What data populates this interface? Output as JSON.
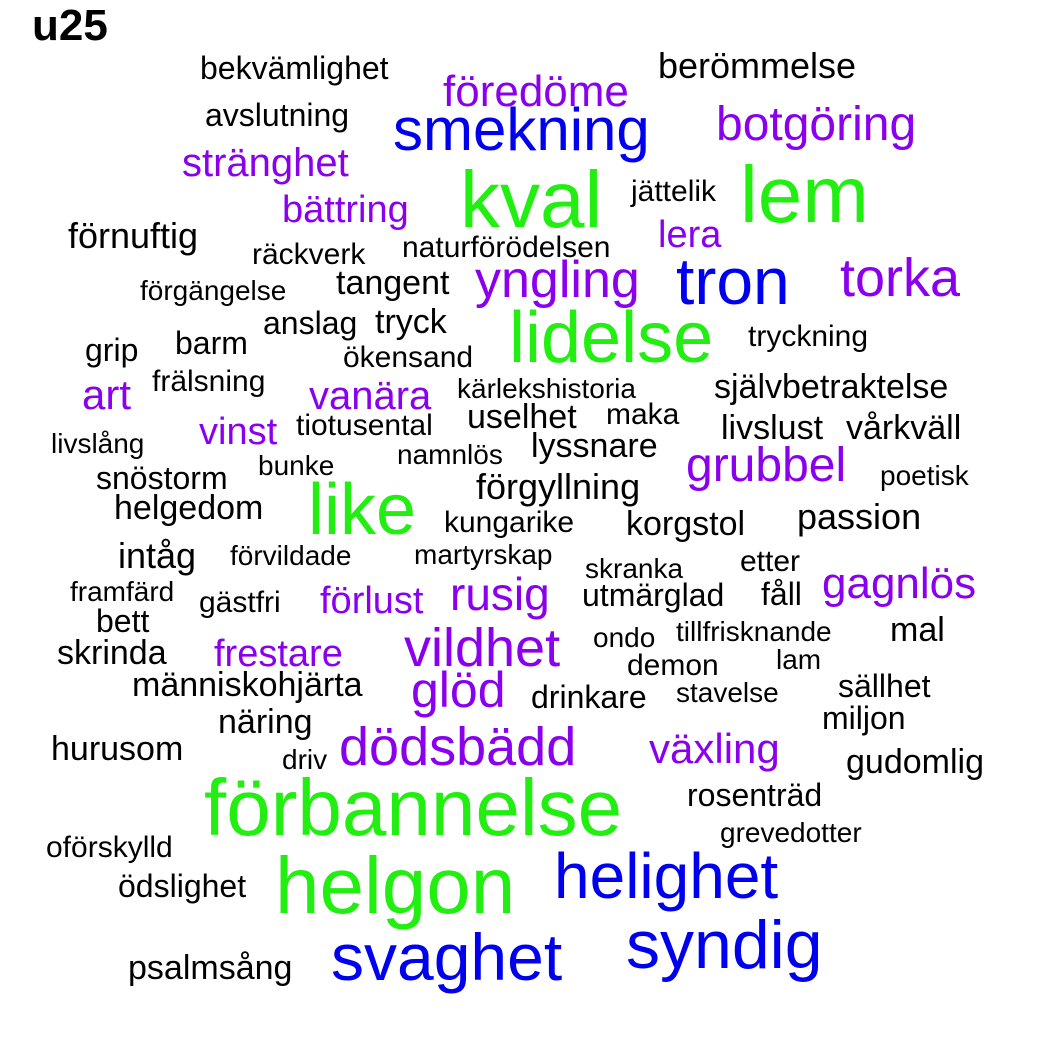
{
  "title": "u25",
  "colors": {
    "black": "#000000",
    "purple": "#8a00ee",
    "blue": "#0000ee",
    "green": "#22ee11"
  },
  "words": [
    {
      "text": "bekvämlighet",
      "color": "black"
    },
    {
      "text": "berömmelse",
      "color": "black"
    },
    {
      "text": "föredöme",
      "color": "purple"
    },
    {
      "text": "avslutning",
      "color": "black"
    },
    {
      "text": "smekning",
      "color": "blue"
    },
    {
      "text": "botgöring",
      "color": "purple"
    },
    {
      "text": "stränghet",
      "color": "purple"
    },
    {
      "text": "kval",
      "color": "green"
    },
    {
      "text": "lem",
      "color": "green"
    },
    {
      "text": "jättelik",
      "color": "black"
    },
    {
      "text": "bättring",
      "color": "purple"
    },
    {
      "text": "förnuftig",
      "color": "black"
    },
    {
      "text": "lera",
      "color": "purple"
    },
    {
      "text": "räckverk",
      "color": "black"
    },
    {
      "text": "naturförödelsen",
      "color": "black"
    },
    {
      "text": "tron",
      "color": "blue"
    },
    {
      "text": "torka",
      "color": "purple"
    },
    {
      "text": "yngling",
      "color": "purple"
    },
    {
      "text": "tangent",
      "color": "black"
    },
    {
      "text": "förgängelse",
      "color": "black"
    },
    {
      "text": "lidelse",
      "color": "green"
    },
    {
      "text": "anslag",
      "color": "black"
    },
    {
      "text": "tryck",
      "color": "black"
    },
    {
      "text": "tryckning",
      "color": "black"
    },
    {
      "text": "grip",
      "color": "black"
    },
    {
      "text": "barm",
      "color": "black"
    },
    {
      "text": "ökensand",
      "color": "black"
    },
    {
      "text": "art",
      "color": "purple"
    },
    {
      "text": "frälsning",
      "color": "black"
    },
    {
      "text": "vanära",
      "color": "purple"
    },
    {
      "text": "kärlekshistoria",
      "color": "black"
    },
    {
      "text": "självbetraktelse",
      "color": "black"
    },
    {
      "text": "uselhet",
      "color": "black"
    },
    {
      "text": "maka",
      "color": "black"
    },
    {
      "text": "vinst",
      "color": "purple"
    },
    {
      "text": "tiotusental",
      "color": "black"
    },
    {
      "text": "livslust",
      "color": "black"
    },
    {
      "text": "vårkväll",
      "color": "black"
    },
    {
      "text": "livslång",
      "color": "black"
    },
    {
      "text": "lyssnare",
      "color": "black"
    },
    {
      "text": "namnlös",
      "color": "black"
    },
    {
      "text": "grubbel",
      "color": "purple"
    },
    {
      "text": "snöstorm",
      "color": "black"
    },
    {
      "text": "bunke",
      "color": "black"
    },
    {
      "text": "poetisk",
      "color": "black"
    },
    {
      "text": "like",
      "color": "green"
    },
    {
      "text": "förgyllning",
      "color": "black"
    },
    {
      "text": "helgedom",
      "color": "black"
    },
    {
      "text": "passion",
      "color": "black"
    },
    {
      "text": "kungarike",
      "color": "black"
    },
    {
      "text": "korgstol",
      "color": "black"
    },
    {
      "text": "intåg",
      "color": "black"
    },
    {
      "text": "förvildade",
      "color": "black"
    },
    {
      "text": "martyrskap",
      "color": "black"
    },
    {
      "text": "etter",
      "color": "black"
    },
    {
      "text": "skranka",
      "color": "black"
    },
    {
      "text": "gagnlös",
      "color": "purple"
    },
    {
      "text": "framfärd",
      "color": "black"
    },
    {
      "text": "rusig",
      "color": "purple"
    },
    {
      "text": "fåll",
      "color": "black"
    },
    {
      "text": "gästfri",
      "color": "black"
    },
    {
      "text": "förlust",
      "color": "purple"
    },
    {
      "text": "utmärglad",
      "color": "black"
    },
    {
      "text": "bett",
      "color": "black"
    },
    {
      "text": "mal",
      "color": "black"
    },
    {
      "text": "tillfrisknande",
      "color": "black"
    },
    {
      "text": "vildhet",
      "color": "purple"
    },
    {
      "text": "ondo",
      "color": "black"
    },
    {
      "text": "skrinda",
      "color": "black"
    },
    {
      "text": "frestare",
      "color": "purple"
    },
    {
      "text": "demon",
      "color": "black"
    },
    {
      "text": "lam",
      "color": "black"
    },
    {
      "text": "människohjärta",
      "color": "black"
    },
    {
      "text": "glöd",
      "color": "purple"
    },
    {
      "text": "sällhet",
      "color": "black"
    },
    {
      "text": "drinkare",
      "color": "black"
    },
    {
      "text": "stavelse",
      "color": "black"
    },
    {
      "text": "miljon",
      "color": "black"
    },
    {
      "text": "näring",
      "color": "black"
    },
    {
      "text": "hurusom",
      "color": "black"
    },
    {
      "text": "dödsbädd",
      "color": "purple"
    },
    {
      "text": "växling",
      "color": "purple"
    },
    {
      "text": "driv",
      "color": "black"
    },
    {
      "text": "gudomlig",
      "color": "black"
    },
    {
      "text": "rosenträd",
      "color": "black"
    },
    {
      "text": "förbannelse",
      "color": "green"
    },
    {
      "text": "grevedotter",
      "color": "black"
    },
    {
      "text": "oförskylld",
      "color": "black"
    },
    {
      "text": "helighet",
      "color": "blue"
    },
    {
      "text": "helgon",
      "color": "green"
    },
    {
      "text": "ödslighet",
      "color": "black"
    },
    {
      "text": "syndig",
      "color": "blue"
    },
    {
      "text": "svaghet",
      "color": "blue"
    },
    {
      "text": "psalmsång",
      "color": "black"
    }
  ]
}
